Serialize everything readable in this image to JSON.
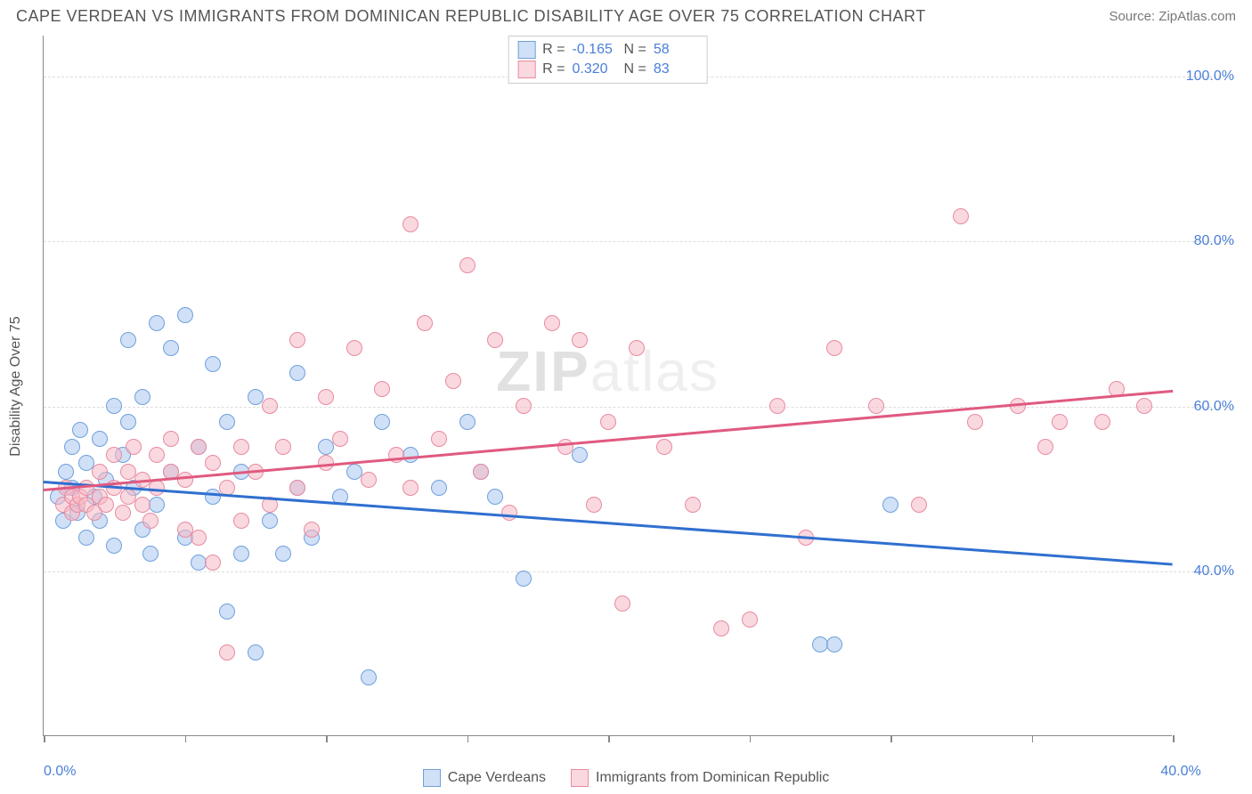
{
  "header": {
    "title": "CAPE VERDEAN VS IMMIGRANTS FROM DOMINICAN REPUBLIC DISABILITY AGE OVER 75 CORRELATION CHART",
    "source": "Source: ZipAtlas.com"
  },
  "watermark": {
    "part1": "ZIP",
    "part2": "atlas"
  },
  "chart": {
    "type": "scatter",
    "y_axis_title": "Disability Age Over 75",
    "xlim": [
      0,
      40
    ],
    "ylim": [
      20,
      105
    ],
    "x_ticks": [
      0,
      5,
      10,
      15,
      20,
      25,
      30,
      35,
      40
    ],
    "x_tick_labels": {
      "0": "0.0%",
      "40": "40.0%"
    },
    "y_gridlines": [
      40,
      60,
      80,
      100
    ],
    "y_tick_labels": {
      "40": "40.0%",
      "60": "60.0%",
      "80": "80.0%",
      "100": "100.0%"
    },
    "background_color": "#ffffff",
    "grid_color": "#dddddd",
    "axis_color": "#888888",
    "tick_label_color": "#4a7fd8",
    "dot_radius": 9
  },
  "series": [
    {
      "name": "Cape Verdeans",
      "fill": "#a9c7ef",
      "stroke": "#6fa0dd",
      "fill_alpha": 0.55,
      "R": "-0.165",
      "N": "58",
      "trend": {
        "y_start": 51,
        "y_end": 41,
        "color": "#2f6fd0"
      },
      "points": [
        [
          0.5,
          49
        ],
        [
          0.7,
          46
        ],
        [
          0.8,
          52
        ],
        [
          1.0,
          55
        ],
        [
          1.0,
          50
        ],
        [
          1.2,
          47
        ],
        [
          1.3,
          57
        ],
        [
          1.5,
          53
        ],
        [
          1.5,
          44
        ],
        [
          1.8,
          49
        ],
        [
          2.0,
          56
        ],
        [
          2.0,
          46
        ],
        [
          2.2,
          51
        ],
        [
          2.5,
          60
        ],
        [
          2.5,
          43
        ],
        [
          2.8,
          54
        ],
        [
          3.0,
          68
        ],
        [
          3.0,
          58
        ],
        [
          3.2,
          50
        ],
        [
          3.5,
          45
        ],
        [
          3.5,
          61
        ],
        [
          3.8,
          42
        ],
        [
          4.0,
          70
        ],
        [
          4.0,
          48
        ],
        [
          4.5,
          67
        ],
        [
          4.5,
          52
        ],
        [
          5.0,
          71
        ],
        [
          5.0,
          44
        ],
        [
          5.5,
          55
        ],
        [
          5.5,
          41
        ],
        [
          6.0,
          65
        ],
        [
          6.0,
          49
        ],
        [
          6.5,
          35
        ],
        [
          6.5,
          58
        ],
        [
          7.0,
          42
        ],
        [
          7.0,
          52
        ],
        [
          7.5,
          30
        ],
        [
          7.5,
          61
        ],
        [
          8.0,
          46
        ],
        [
          8.5,
          42
        ],
        [
          9.0,
          64
        ],
        [
          9.0,
          50
        ],
        [
          9.5,
          44
        ],
        [
          10.0,
          55
        ],
        [
          10.5,
          49
        ],
        [
          11.0,
          52
        ],
        [
          11.5,
          27
        ],
        [
          12.0,
          58
        ],
        [
          13.0,
          54
        ],
        [
          14.0,
          50
        ],
        [
          15.0,
          58
        ],
        [
          15.5,
          52
        ],
        [
          16.0,
          49
        ],
        [
          17.0,
          39
        ],
        [
          19.0,
          54
        ],
        [
          27.5,
          31
        ],
        [
          28.0,
          31
        ],
        [
          30.0,
          48
        ]
      ]
    },
    {
      "name": "Immigrants from Dominican Republic",
      "fill": "#f6b8c5",
      "stroke": "#e88ba0",
      "fill_alpha": 0.55,
      "R": "0.320",
      "N": "83",
      "trend": {
        "y_start": 50,
        "y_end": 62,
        "color": "#e05a80"
      },
      "points": [
        [
          0.7,
          48
        ],
        [
          0.8,
          50
        ],
        [
          1.0,
          47
        ],
        [
          1.0,
          49
        ],
        [
          1.2,
          48
        ],
        [
          1.3,
          49
        ],
        [
          1.5,
          48
        ],
        [
          1.5,
          50
        ],
        [
          1.8,
          47
        ],
        [
          2.0,
          49
        ],
        [
          2.0,
          52
        ],
        [
          2.2,
          48
        ],
        [
          2.5,
          50
        ],
        [
          2.5,
          54
        ],
        [
          2.8,
          47
        ],
        [
          3.0,
          52
        ],
        [
          3.0,
          49
        ],
        [
          3.2,
          55
        ],
        [
          3.5,
          48
        ],
        [
          3.5,
          51
        ],
        [
          3.8,
          46
        ],
        [
          4.0,
          54
        ],
        [
          4.0,
          50
        ],
        [
          4.5,
          52
        ],
        [
          4.5,
          56
        ],
        [
          5.0,
          45
        ],
        [
          5.0,
          51
        ],
        [
          5.5,
          44
        ],
        [
          5.5,
          55
        ],
        [
          6.0,
          41
        ],
        [
          6.0,
          53
        ],
        [
          6.5,
          50
        ],
        [
          6.5,
          30
        ],
        [
          7.0,
          55
        ],
        [
          7.0,
          46
        ],
        [
          7.5,
          52
        ],
        [
          8.0,
          60
        ],
        [
          8.0,
          48
        ],
        [
          8.5,
          55
        ],
        [
          9.0,
          68
        ],
        [
          9.0,
          50
        ],
        [
          9.5,
          45
        ],
        [
          10.0,
          61
        ],
        [
          10.0,
          53
        ],
        [
          10.5,
          56
        ],
        [
          11.0,
          67
        ],
        [
          11.5,
          51
        ],
        [
          12.0,
          62
        ],
        [
          12.5,
          54
        ],
        [
          13.0,
          50
        ],
        [
          13.0,
          82
        ],
        [
          13.5,
          70
        ],
        [
          14.0,
          56
        ],
        [
          14.5,
          63
        ],
        [
          15.0,
          77
        ],
        [
          15.5,
          52
        ],
        [
          16.0,
          68
        ],
        [
          16.5,
          47
        ],
        [
          17.0,
          60
        ],
        [
          18.0,
          70
        ],
        [
          18.5,
          55
        ],
        [
          19.0,
          68
        ],
        [
          19.5,
          48
        ],
        [
          20.0,
          58
        ],
        [
          20.5,
          36
        ],
        [
          21.0,
          67
        ],
        [
          22.0,
          55
        ],
        [
          23.0,
          48
        ],
        [
          24.0,
          33
        ],
        [
          25.0,
          34
        ],
        [
          26.0,
          60
        ],
        [
          27.0,
          44
        ],
        [
          28.0,
          67
        ],
        [
          29.5,
          60
        ],
        [
          31.0,
          48
        ],
        [
          32.5,
          83
        ],
        [
          33.0,
          58
        ],
        [
          34.5,
          60
        ],
        [
          35.5,
          55
        ],
        [
          36.0,
          58
        ],
        [
          37.5,
          58
        ],
        [
          38.0,
          62
        ],
        [
          39.0,
          60
        ]
      ]
    }
  ],
  "legend": {
    "stat_labels": {
      "R": "R =",
      "N": "N ="
    }
  }
}
